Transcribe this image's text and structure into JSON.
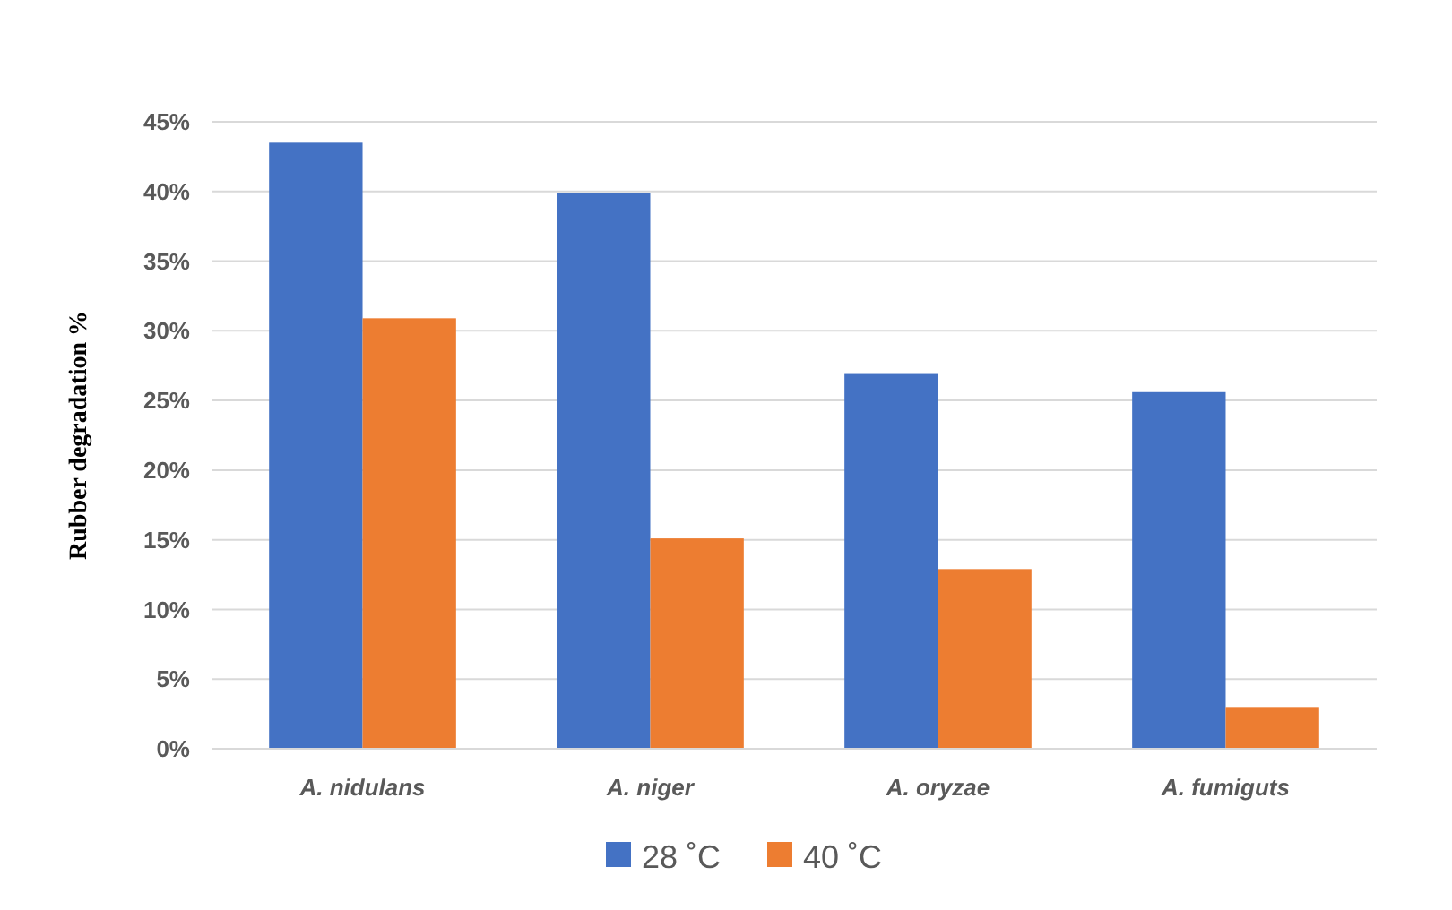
{
  "chart_data": {
    "type": "bar",
    "ylabel": "Rubber degradation %",
    "categories": [
      "A. nidulans",
      "A. niger",
      "A. oryzae",
      "A. fumiguts"
    ],
    "series": [
      {
        "name": "28 ˚C",
        "color": "#4472c4",
        "values": [
          43.5,
          39.9,
          26.9,
          25.6
        ]
      },
      {
        "name": "40 ˚C",
        "color": "#ed7d31",
        "values": [
          30.9,
          15.1,
          12.9,
          3.0
        ]
      }
    ],
    "ylim": [
      0,
      45
    ],
    "yticks": [
      {
        "value": 0,
        "label": "0%"
      },
      {
        "value": 5,
        "label": "5%"
      },
      {
        "value": 10,
        "label": "10%"
      },
      {
        "value": 15,
        "label": "15%"
      },
      {
        "value": 20,
        "label": "20%"
      },
      {
        "value": 25,
        "label": "25%"
      },
      {
        "value": 30,
        "label": "30%"
      },
      {
        "value": 35,
        "label": "35%"
      },
      {
        "value": 40,
        "label": "40%"
      },
      {
        "value": 45,
        "label": "45%"
      }
    ],
    "grid": "y",
    "legend": "bottom"
  }
}
